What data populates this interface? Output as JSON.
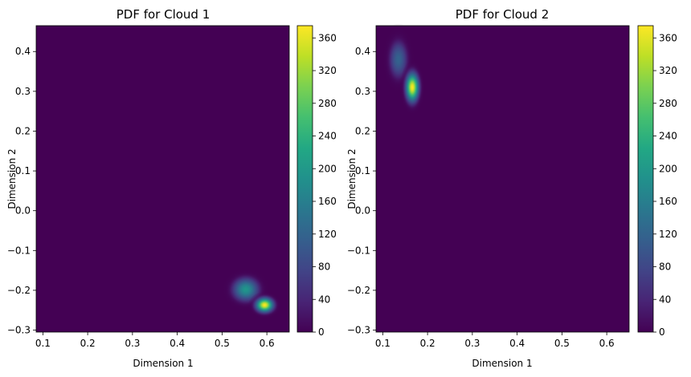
{
  "chart_data": [
    {
      "type": "heatmap",
      "title": "PDF for Cloud 1",
      "xlabel": "Dimension 1",
      "ylabel": "Dimension 2",
      "xlim": [
        0.085,
        0.65
      ],
      "ylim": [
        -0.305,
        0.465
      ],
      "xticks": [
        "0.1",
        "0.2",
        "0.3",
        "0.4",
        "0.5",
        "0.6"
      ],
      "yticks": [
        "−0.3",
        "−0.2",
        "−0.1",
        "0.0",
        "0.1",
        "0.2",
        "0.3",
        "0.4"
      ],
      "colorbar": {
        "range": [
          0,
          375
        ],
        "ticks": [
          "0",
          "40",
          "80",
          "120",
          "160",
          "200",
          "240",
          "280",
          "320",
          "360"
        ],
        "colormap": "viridis"
      },
      "peaks": [
        {
          "x": 0.553,
          "y": -0.198,
          "sx": 0.018,
          "sy": 0.018,
          "value": 195
        },
        {
          "x": 0.595,
          "y": -0.237,
          "sx": 0.012,
          "sy": 0.011,
          "value": 375
        }
      ],
      "grid": false
    },
    {
      "type": "heatmap",
      "title": "PDF for Cloud 2",
      "xlabel": "Dimension 1",
      "ylabel": "Dimension 2",
      "xlim": [
        0.085,
        0.65
      ],
      "ylim": [
        -0.305,
        0.465
      ],
      "xticks": [
        "0.1",
        "0.2",
        "0.3",
        "0.4",
        "0.5",
        "0.6"
      ],
      "yticks": [
        "−0.3",
        "−0.2",
        "−0.1",
        "0.0",
        "0.1",
        "0.2",
        "0.3",
        "0.4"
      ],
      "colorbar": {
        "range": [
          0,
          375
        ],
        "ticks": [
          "0",
          "40",
          "80",
          "120",
          "160",
          "200",
          "240",
          "280",
          "320",
          "360"
        ],
        "colormap": "viridis"
      },
      "peaks": [
        {
          "x": 0.135,
          "y": 0.38,
          "sx": 0.013,
          "sy": 0.03,
          "value": 120
        },
        {
          "x": 0.166,
          "y": 0.31,
          "sx": 0.009,
          "sy": 0.022,
          "value": 375
        }
      ],
      "grid": false
    }
  ]
}
